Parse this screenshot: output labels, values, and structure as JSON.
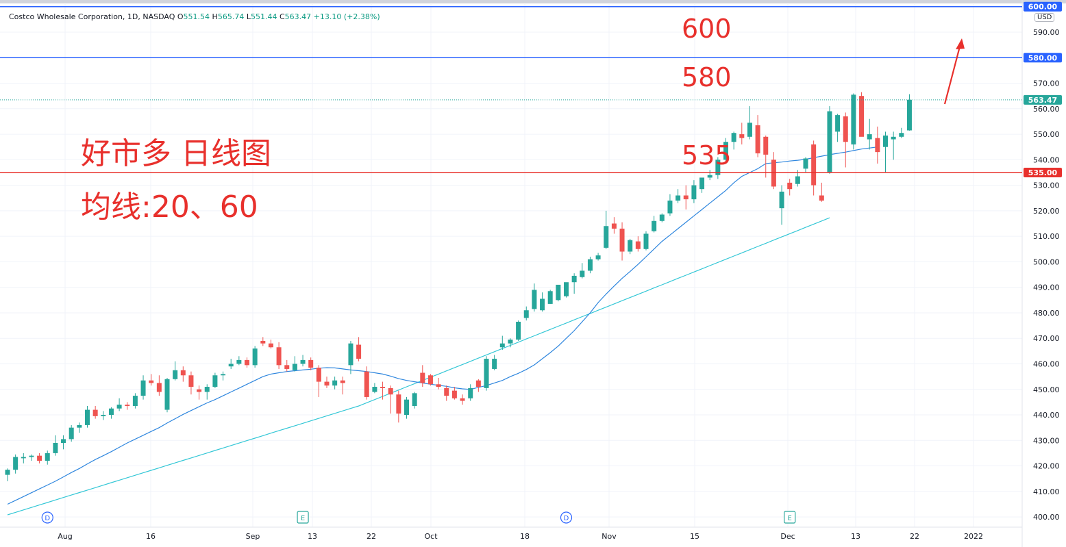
{
  "header": {
    "name": "Costco Wholesale Corporation, 1D, NASDAQ",
    "o_label": "O",
    "o_val": "551.54",
    "h_label": "H",
    "h_val": "565.74",
    "l_label": "L",
    "l_val": "551.44",
    "c_label": "C",
    "c_val": "563.47",
    "change": "+13.10 (+2.38%)"
  },
  "annotations": {
    "title": "好市多 日线图",
    "ma_label": "均线:20、60",
    "level_600": "600",
    "level_580": "580",
    "level_535": "535"
  },
  "currency": "USD",
  "colors": {
    "up": "#26a69a",
    "down": "#ef5350",
    "ma20": "#2e86de",
    "ma60": "#33c7d6",
    "level_blue": "#2962ff",
    "level_red": "#e8302c",
    "annotation": "#e8302c"
  },
  "chart_data": {
    "type": "candlestick",
    "y_ticks": [
      400,
      410,
      420,
      430,
      440,
      450,
      460,
      470,
      480,
      490,
      500,
      510,
      520,
      530,
      540,
      550,
      560,
      570,
      580,
      590
    ],
    "ylim": [
      396,
      601
    ],
    "x_labels": [
      "Aug",
      "16",
      "Sep",
      "13",
      "22",
      "Oct",
      "18",
      "Nov",
      "15",
      "Dec",
      "13",
      "22",
      "2022"
    ],
    "horizontal_levels": [
      {
        "price": 600,
        "label": "600.00",
        "color": "#2962ff"
      },
      {
        "price": 580,
        "label": "580.00",
        "color": "#2962ff"
      },
      {
        "price": 563.47,
        "label": "563.47",
        "color": "#26a69a",
        "style": "dotted"
      },
      {
        "price": 535,
        "label": "535.00",
        "color": "#e8302c"
      }
    ],
    "event_markers": [
      {
        "label": "D",
        "index": 5
      },
      {
        "label": "E",
        "index": 37
      },
      {
        "label": "D",
        "index": 70
      },
      {
        "label": "E",
        "index": 98
      }
    ],
    "candles": [
      [
        416.5,
        419.0,
        414.0,
        418.5
      ],
      [
        418.5,
        424.5,
        417.0,
        423.5
      ],
      [
        423.0,
        425.0,
        421.0,
        423.5
      ],
      [
        423.5,
        424.5,
        422.0,
        424.0
      ],
      [
        424.0,
        425.0,
        421.0,
        422.0
      ],
      [
        422.0,
        426.0,
        420.5,
        425.0
      ],
      [
        425.0,
        432.0,
        424.0,
        429.0
      ],
      [
        429.0,
        432.0,
        426.5,
        430.5
      ],
      [
        430.5,
        436.0,
        429.5,
        435.0
      ],
      [
        435.0,
        437.0,
        433.0,
        436.0
      ],
      [
        436.0,
        443.5,
        435.0,
        442.0
      ],
      [
        442.0,
        443.5,
        438.5,
        439.5
      ],
      [
        439.5,
        441.5,
        438.0,
        440.0
      ],
      [
        440.0,
        443.0,
        438.5,
        442.5
      ],
      [
        442.5,
        446.5,
        441.5,
        444.0
      ],
      [
        444.0,
        445.0,
        442.0,
        443.5
      ],
      [
        443.5,
        448.5,
        442.5,
        447.5
      ],
      [
        447.5,
        455.5,
        446.0,
        453.5
      ],
      [
        453.5,
        456.0,
        451.5,
        452.5
      ],
      [
        452.5,
        455.5,
        447.5,
        449.0
      ],
      [
        442.0,
        454.5,
        441.0,
        454.0
      ],
      [
        454.0,
        461.0,
        453.5,
        457.5
      ],
      [
        457.5,
        459.0,
        453.0,
        455.5
      ],
      [
        455.5,
        457.0,
        448.0,
        451.0
      ],
      [
        450.0,
        451.5,
        446.0,
        449.0
      ],
      [
        449.0,
        452.0,
        446.0,
        451.0
      ],
      [
        451.0,
        456.5,
        450.5,
        455.5
      ],
      [
        455.5,
        457.0,
        453.5,
        456.0
      ],
      [
        459.0,
        462.0,
        458.0,
        460.0
      ],
      [
        460.0,
        463.0,
        459.5,
        461.5
      ],
      [
        461.5,
        462.5,
        458.5,
        459.5
      ],
      [
        459.5,
        467.0,
        458.5,
        466.0
      ],
      [
        469.0,
        470.5,
        467.0,
        468.0
      ],
      [
        468.0,
        469.5,
        466.0,
        466.5
      ],
      [
        466.5,
        468.5,
        458.0,
        459.5
      ],
      [
        459.5,
        461.5,
        457.0,
        458.0
      ],
      [
        457.5,
        463.0,
        457.0,
        460.0
      ],
      [
        460.0,
        463.5,
        459.0,
        461.5
      ],
      [
        461.5,
        462.5,
        457.5,
        458.5
      ],
      [
        458.5,
        459.5,
        447.0,
        453.0
      ],
      [
        453.0,
        455.0,
        450.5,
        451.5
      ],
      [
        451.5,
        455.0,
        450.0,
        453.5
      ],
      [
        453.5,
        455.0,
        448.0,
        452.5
      ],
      [
        459.5,
        469.0,
        456.0,
        468.0
      ],
      [
        467.5,
        470.5,
        461.0,
        462.0
      ],
      [
        457.0,
        459.0,
        446.0,
        447.0
      ],
      [
        449.0,
        452.5,
        448.5,
        451.0
      ],
      [
        451.0,
        453.0,
        446.0,
        450.5
      ],
      [
        450.5,
        451.5,
        440.5,
        448.0
      ],
      [
        448.0,
        449.5,
        437.0,
        440.5
      ],
      [
        440.0,
        447.0,
        438.5,
        446.0
      ],
      [
        443.5,
        449.0,
        442.5,
        448.5
      ],
      [
        456.5,
        459.5,
        451.0,
        452.5
      ],
      [
        455.5,
        456.0,
        451.5,
        452.0
      ],
      [
        452.0,
        454.5,
        450.0,
        451.0
      ],
      [
        450.5,
        451.5,
        445.5,
        447.5
      ],
      [
        449.5,
        451.0,
        446.0,
        446.5
      ],
      [
        446.5,
        448.0,
        444.0,
        445.5
      ],
      [
        446.5,
        452.0,
        445.5,
        450.5
      ],
      [
        453.5,
        454.0,
        449.0,
        451.0
      ],
      [
        450.5,
        463.0,
        449.5,
        462.0
      ],
      [
        458.0,
        463.5,
        457.5,
        462.0
      ],
      [
        466.5,
        471.0,
        465.5,
        468.0
      ],
      [
        468.0,
        470.0,
        466.5,
        469.5
      ],
      [
        469.5,
        477.0,
        469.0,
        476.5
      ],
      [
        478.0,
        482.5,
        477.0,
        481.0
      ],
      [
        481.5,
        491.5,
        480.5,
        489.0
      ],
      [
        481.0,
        488.0,
        480.5,
        485.5
      ],
      [
        483.5,
        489.0,
        483.5,
        488.5
      ],
      [
        485.0,
        490.5,
        484.5,
        491.0
      ],
      [
        486.5,
        491.0,
        486.0,
        492.0
      ],
      [
        492.0,
        495.5,
        487.5,
        494.5
      ],
      [
        494.0,
        499.5,
        493.5,
        496.5
      ],
      [
        496.5,
        502.0,
        495.5,
        501.0
      ],
      [
        501.0,
        503.5,
        500.5,
        502.5
      ],
      [
        505.5,
        520.0,
        505.0,
        514.0
      ],
      [
        515.0,
        517.5,
        511.0,
        513.0
      ],
      [
        513.0,
        515.5,
        500.5,
        504.0
      ],
      [
        504.0,
        509.0,
        503.0,
        508.5
      ],
      [
        508.0,
        510.0,
        504.0,
        505.0
      ],
      [
        505.0,
        512.0,
        504.5,
        511.0
      ],
      [
        512.0,
        518.0,
        511.5,
        516.0
      ],
      [
        516.0,
        519.0,
        515.5,
        518.5
      ],
      [
        519.0,
        526.5,
        518.0,
        524.0
      ],
      [
        524.0,
        528.5,
        523.0,
        526.0
      ],
      [
        526.0,
        530.0,
        520.5,
        524.5
      ],
      [
        524.5,
        532.0,
        523.0,
        530.0
      ],
      [
        528.5,
        532.5,
        527.0,
        533.0
      ],
      [
        533.0,
        536.0,
        532.0,
        534.0
      ],
      [
        534.0,
        541.0,
        532.5,
        540.0
      ],
      [
        540.0,
        548.5,
        538.5,
        547.0
      ],
      [
        547.0,
        551.0,
        544.0,
        550.5
      ],
      [
        550.0,
        554.5,
        546.0,
        548.5
      ],
      [
        549.0,
        561.0,
        548.0,
        554.5
      ],
      [
        553.5,
        557.5,
        541.0,
        542.5
      ],
      [
        549.0,
        549.5,
        533.0,
        542.0
      ],
      [
        540.0,
        543.0,
        528.5,
        529.5
      ],
      [
        521.0,
        530.0,
        514.5,
        527.5
      ],
      [
        531.0,
        532.5,
        526.0,
        528.5
      ],
      [
        530.5,
        536.0,
        529.5,
        533.5
      ],
      [
        536.5,
        541.0,
        535.0,
        540.5
      ],
      [
        546.0,
        547.5,
        526.0,
        530.0
      ],
      [
        526.0,
        531.0,
        523.5,
        524.0
      ],
      [
        535.0,
        561.0,
        534.5,
        559.0
      ],
      [
        551.0,
        558.0,
        547.0,
        557.5
      ],
      [
        557.0,
        558.5,
        537.0,
        547.0
      ],
      [
        546.0,
        566.0,
        544.0,
        565.5
      ],
      [
        565.0,
        566.5,
        549.5,
        549.0
      ],
      [
        548.0,
        556.0,
        544.0,
        550.0
      ],
      [
        548.5,
        553.0,
        538.5,
        543.0
      ],
      [
        545.0,
        551.0,
        535.0,
        549.5
      ],
      [
        548.0,
        551.0,
        540.0,
        549.0
      ],
      [
        549.0,
        552.5,
        548.5,
        550.5
      ],
      [
        551.5,
        565.7,
        551.4,
        563.5
      ]
    ],
    "ma20": [
      405,
      406.5,
      408,
      409.5,
      411,
      412.5,
      414,
      415.7,
      417.4,
      419,
      420.8,
      422.5,
      424,
      425.6,
      427.3,
      429,
      430.5,
      432,
      433.5,
      435,
      436.8,
      438.5,
      440.2,
      441.7,
      443.2,
      444.7,
      446,
      447.5,
      449,
      450.5,
      452,
      453.5,
      455,
      456,
      456.5,
      457,
      457.3,
      457.6,
      457.9,
      458.3,
      458.5,
      458.4,
      458,
      457.6,
      457.3,
      457,
      456.5,
      456,
      455.2,
      454.2,
      453.5,
      453,
      452.5,
      452,
      451.6,
      451.2,
      450.6,
      450.2,
      450,
      450.8,
      451.5,
      452.5,
      453.5,
      455,
      456.3,
      457.8,
      459.6,
      462,
      464.4,
      467,
      470,
      473,
      476.5,
      480,
      484,
      487.4,
      490.5,
      493.5,
      496.2,
      499,
      502,
      505,
      508,
      510.5,
      513,
      515.5,
      518,
      520.5,
      523,
      525.5,
      528,
      531,
      533.5,
      535,
      536.5,
      538.5,
      538.8,
      539.1,
      539.5,
      539.8,
      540.2,
      540.8,
      541.4,
      542,
      542.5,
      543,
      543.6,
      544.2,
      544.6,
      545
    ]
  }
}
